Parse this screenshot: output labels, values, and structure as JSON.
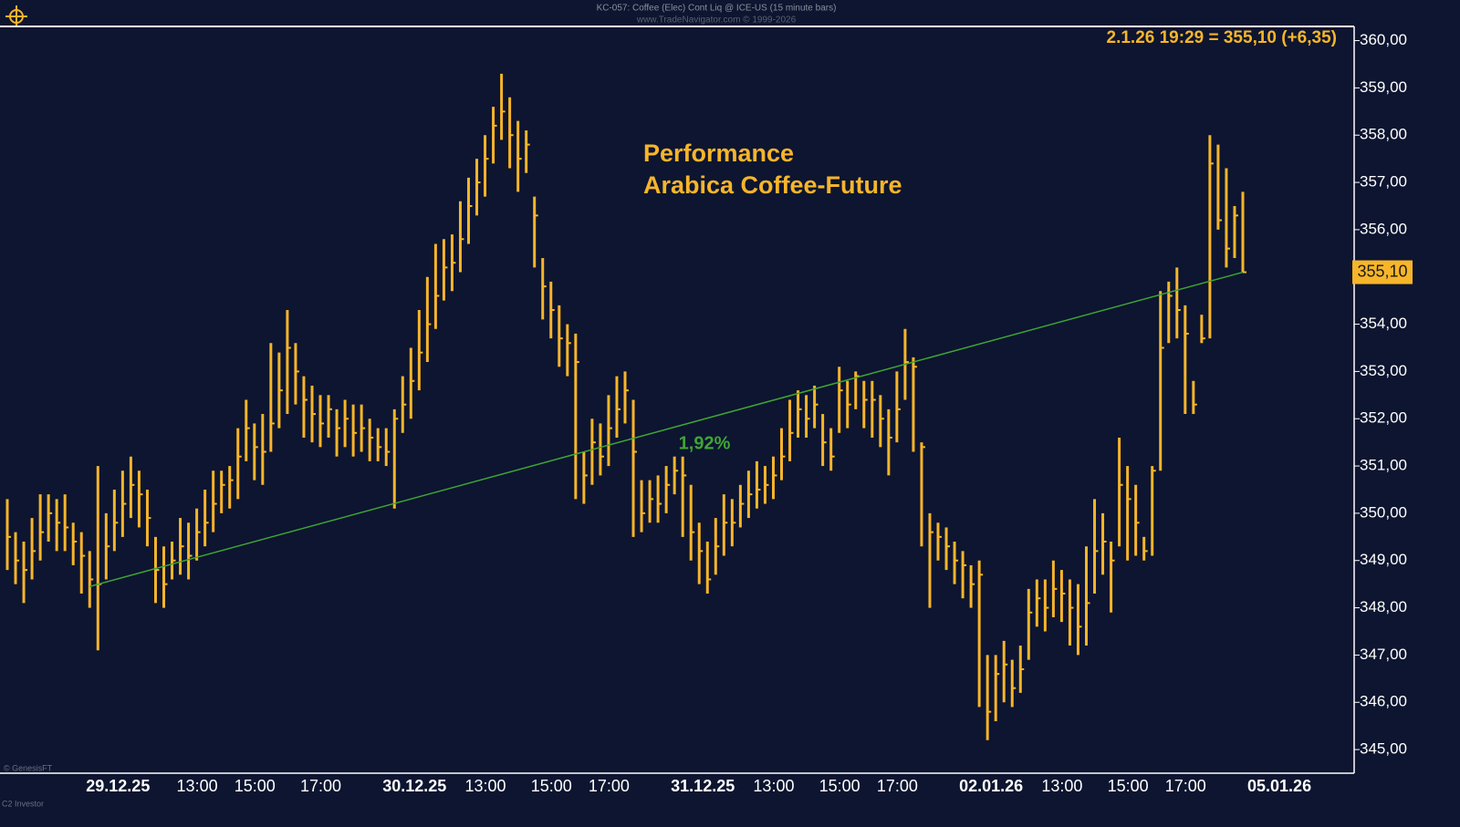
{
  "chart_data": {
    "type": "hlc",
    "header": "KC-057: Coffee (Elec) Cont Liq @ ICE-US (15 minute bars)",
    "source": "www.TradeNavigator.com © 1999-2026",
    "title": "Performance",
    "subtitle": "Arabica Coffee-Future",
    "last_info": "2.1.26 19:29 = 355,10 (+6,35)",
    "last_label": "355,10",
    "footer_left": "© GenesisFT",
    "footer_left2": "C2 Investor",
    "color": "#f7b52a",
    "categories": [
      null,
      null,
      null,
      null,
      null,
      null,
      null,
      null,
      null,
      null,
      "29.12.25",
      null,
      null,
      null,
      null,
      null,
      null,
      null,
      null,
      null,
      null,
      "13:00",
      null,
      null,
      null,
      null,
      null,
      null,
      "15:00",
      null,
      null,
      null,
      null,
      null,
      null,
      null,
      "17:00",
      null,
      null,
      null,
      null,
      null,
      null,
      null,
      null,
      null,
      "30.12.25",
      null,
      null,
      null,
      null,
      null,
      null,
      null,
      null,
      null,
      "13:00",
      null,
      null,
      null,
      null,
      null,
      null,
      null,
      "15:00",
      null,
      null,
      null,
      null,
      null,
      null,
      "17:00",
      null,
      null,
      null,
      null,
      null,
      null,
      null,
      null,
      null,
      "31.12.25",
      null,
      null,
      null,
      null,
      null,
      null,
      null,
      null,
      null,
      "13:00",
      null,
      null,
      null,
      null,
      null,
      null,
      null,
      "15:00",
      null,
      null,
      null,
      null,
      null,
      null,
      "17:00",
      null,
      null,
      null,
      null,
      null,
      null,
      null,
      null,
      null,
      "02.01.26",
      null,
      null,
      null,
      null,
      null,
      null,
      null,
      null,
      null,
      "13:00",
      null,
      null,
      null,
      null,
      null,
      null,
      null,
      "15:00",
      null,
      null,
      null,
      null,
      null,
      null,
      "17:00",
      null,
      null,
      null,
      null,
      null,
      null,
      null,
      null,
      null,
      "05.01.26"
    ],
    "high": [
      350.3,
      349.6,
      349.4,
      349.9,
      350.4,
      350.4,
      350.3,
      350.4,
      349.8,
      349.6,
      349.2,
      351.0,
      350.0,
      350.5,
      350.9,
      351.2,
      350.9,
      350.5,
      349.5,
      349.3,
      349.4,
      349.9,
      349.8,
      350.1,
      350.5,
      350.9,
      350.9,
      351.0,
      351.8,
      352.4,
      351.9,
      352.1,
      353.6,
      353.4,
      354.3,
      353.6,
      352.9,
      352.7,
      352.5,
      352.5,
      352.2,
      352.4,
      352.3,
      352.3,
      352.0,
      351.8,
      351.8,
      352.2,
      352.9,
      353.5,
      354.3,
      355.0,
      355.7,
      355.8,
      355.9,
      356.6,
      357.1,
      357.5,
      358.0,
      358.6,
      359.3,
      358.8,
      358.3,
      358.1,
      356.7,
      355.4,
      354.9,
      354.4,
      354.0,
      353.8,
      351.3,
      352.0,
      351.9,
      352.5,
      352.9,
      353.0,
      352.4,
      350.7,
      350.7,
      350.8,
      351.0,
      351.2,
      351.2,
      350.6,
      349.8,
      349.4,
      349.9,
      350.4,
      350.3,
      350.6,
      350.9,
      351.1,
      351.0,
      351.2,
      351.8,
      352.4,
      352.6,
      352.5,
      352.7,
      352.1,
      351.8,
      353.1,
      352.8,
      353.0,
      352.8,
      352.8,
      352.5,
      352.2,
      353.0,
      353.9,
      353.3,
      351.5,
      350.0,
      349.8,
      349.7,
      349.4,
      349.2,
      348.9,
      349.0,
      347.0,
      347.0,
      347.3,
      346.9,
      347.2,
      348.4,
      348.6,
      348.6,
      349.0,
      348.8,
      348.6,
      348.5,
      349.3,
      350.3,
      350.0,
      349.4,
      351.6,
      351.0,
      350.6,
      349.5,
      351.0,
      354.7,
      354.9,
      355.2,
      354.4,
      352.8,
      354.2,
      358.0,
      357.8,
      357.3,
      356.5,
      356.8,
      null
    ],
    "low": [
      348.8,
      348.5,
      348.1,
      348.6,
      349.0,
      349.4,
      349.2,
      349.2,
      348.9,
      348.3,
      348.0,
      347.1,
      348.6,
      349.2,
      349.5,
      349.9,
      349.7,
      349.3,
      348.1,
      348.0,
      348.6,
      348.7,
      348.6,
      349.0,
      349.3,
      349.6,
      350.0,
      350.1,
      350.3,
      351.1,
      350.7,
      350.6,
      351.3,
      351.8,
      352.1,
      352.3,
      351.6,
      351.5,
      351.4,
      351.6,
      351.2,
      351.4,
      351.2,
      351.3,
      351.1,
      351.1,
      351.0,
      350.1,
      351.7,
      352.0,
      352.6,
      353.2,
      353.9,
      354.5,
      354.7,
      355.1,
      355.7,
      356.3,
      356.7,
      357.4,
      357.9,
      357.3,
      356.8,
      357.2,
      355.2,
      354.1,
      353.7,
      353.1,
      352.9,
      350.3,
      350.2,
      350.6,
      350.8,
      351.0,
      351.6,
      351.9,
      349.5,
      349.6,
      349.8,
      349.8,
      350.0,
      350.4,
      349.5,
      349.0,
      348.5,
      348.3,
      348.7,
      349.1,
      349.3,
      349.7,
      349.9,
      350.1,
      350.2,
      350.3,
      350.7,
      351.1,
      351.6,
      351.6,
      351.8,
      351.0,
      350.9,
      351.7,
      351.8,
      352.2,
      351.8,
      351.6,
      351.4,
      350.8,
      351.5,
      352.4,
      351.3,
      349.3,
      348.0,
      349.0,
      348.8,
      348.5,
      348.2,
      348.0,
      345.9,
      345.2,
      345.6,
      346.0,
      345.9,
      346.2,
      346.9,
      347.6,
      347.5,
      347.8,
      347.7,
      347.2,
      347.0,
      347.2,
      348.3,
      348.7,
      347.9,
      349.3,
      349.0,
      349.1,
      349.0,
      349.1,
      350.9,
      353.6,
      353.7,
      352.1,
      352.1,
      353.6,
      353.7,
      356.0,
      355.2,
      355.4,
      355.1,
      null
    ],
    "close": [
      349.5,
      349.0,
      348.8,
      349.2,
      349.6,
      350.0,
      349.8,
      349.7,
      349.4,
      349.1,
      348.6,
      348.5,
      349.3,
      349.8,
      350.2,
      350.6,
      350.4,
      349.9,
      348.8,
      348.5,
      349.0,
      349.3,
      349.1,
      349.6,
      349.8,
      350.2,
      350.6,
      350.7,
      351.2,
      351.8,
      351.4,
      351.3,
      351.9,
      352.6,
      353.5,
      353.0,
      352.4,
      352.1,
      351.9,
      352.2,
      351.8,
      352.0,
      351.7,
      351.8,
      351.6,
      351.4,
      351.3,
      352.0,
      352.3,
      352.8,
      353.4,
      354.0,
      354.6,
      355.2,
      355.3,
      355.8,
      356.5,
      357.0,
      357.5,
      358.2,
      358.5,
      358.0,
      357.5,
      357.8,
      356.3,
      354.8,
      354.3,
      353.7,
      353.6,
      353.2,
      350.8,
      351.5,
      351.2,
      351.8,
      352.2,
      352.6,
      351.3,
      350.0,
      350.3,
      350.2,
      350.6,
      350.9,
      350.8,
      349.6,
      349.2,
      348.6,
      349.3,
      349.8,
      349.8,
      350.2,
      350.4,
      350.5,
      350.6,
      350.8,
      351.2,
      351.7,
      352.2,
      352.0,
      352.3,
      351.5,
      351.2,
      352.6,
      352.3,
      352.9,
      352.4,
      352.4,
      352.0,
      351.6,
      352.2,
      353.2,
      353.1,
      351.4,
      349.6,
      349.5,
      349.3,
      349.0,
      348.9,
      348.5,
      348.7,
      345.8,
      346.6,
      346.8,
      346.3,
      346.7,
      347.9,
      348.2,
      348.0,
      348.4,
      348.3,
      348.0,
      347.6,
      348.1,
      349.2,
      349.4,
      349.0,
      350.6,
      350.3,
      349.8,
      349.2,
      350.9,
      353.5,
      354.6,
      354.3,
      353.8,
      352.3,
      353.7,
      357.4,
      356.2,
      355.6,
      356.3,
      355.1,
      null
    ],
    "performance_line": {
      "label": "1,92%",
      "values": [
        348.45,
        355.1
      ],
      "color": "#3fa535"
    },
    "ylim": [
      344.5,
      360.3
    ],
    "yticks": [
      {
        "value": 345,
        "label": "345,00"
      },
      {
        "value": 346,
        "label": "346,00"
      },
      {
        "value": 347,
        "label": "347,00"
      },
      {
        "value": 348,
        "label": "348,00"
      },
      {
        "value": 349,
        "label": "349,00"
      },
      {
        "value": 350,
        "label": "350,00"
      },
      {
        "value": 351,
        "label": "351,00"
      },
      {
        "value": 352,
        "label": "352,00"
      },
      {
        "value": 353,
        "label": "353,00"
      },
      {
        "value": 354,
        "label": "354,00"
      },
      {
        "value": 355,
        "label": "355,00"
      },
      {
        "value": 356,
        "label": "356,00"
      },
      {
        "value": 357,
        "label": "357,00"
      },
      {
        "value": 358,
        "label": "358,00"
      },
      {
        "value": 359,
        "label": "359,00"
      },
      {
        "value": 360,
        "label": "360,00"
      }
    ]
  }
}
